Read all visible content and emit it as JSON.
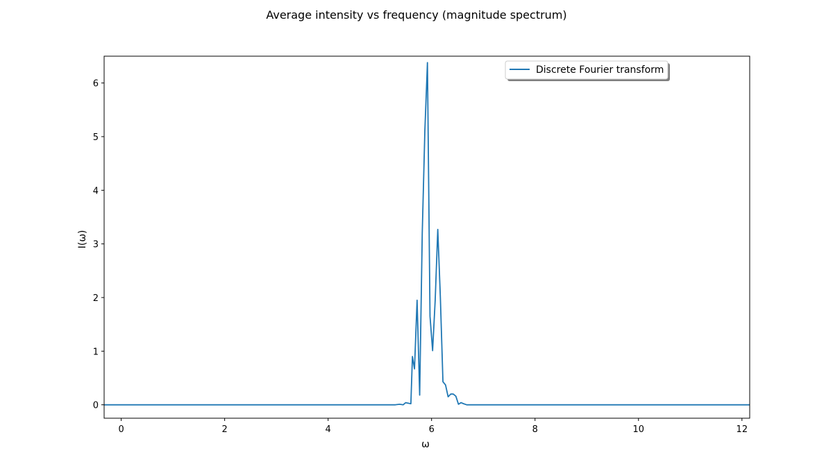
{
  "chart_data": {
    "type": "line",
    "title": "Average intensity vs frequency (magnitude spectrum)",
    "xlabel": "ω",
    "ylabel": "I(ω)",
    "xlim": [
      -0.33,
      12.15
    ],
    "ylim": [
      -0.25,
      6.5
    ],
    "xticks": [
      0,
      2,
      4,
      6,
      8,
      10,
      12
    ],
    "yticks": [
      0,
      1,
      2,
      3,
      4,
      5,
      6
    ],
    "grid": false,
    "legend_position": "top-right",
    "series": [
      {
        "name": "Discrete Fourier transform",
        "color": "#1f77b4",
        "x": [
          -0.33,
          5.3,
          5.38,
          5.45,
          5.5,
          5.55,
          5.6,
          5.63,
          5.67,
          5.72,
          5.77,
          5.82,
          5.87,
          5.92,
          5.97,
          6.02,
          6.07,
          6.12,
          6.17,
          6.22,
          6.27,
          6.32,
          6.37,
          6.42,
          6.47,
          6.52,
          6.57,
          6.62,
          6.68,
          6.75,
          7.0,
          12.15
        ],
        "y": [
          0.0,
          0.0,
          0.01,
          0.0,
          0.04,
          0.03,
          0.02,
          0.9,
          0.67,
          1.95,
          0.18,
          3.2,
          5.1,
          6.38,
          1.65,
          1.01,
          1.95,
          3.27,
          2.0,
          0.43,
          0.37,
          0.15,
          0.2,
          0.2,
          0.16,
          0.01,
          0.04,
          0.02,
          0.0,
          0.0,
          0.0,
          0.0
        ]
      }
    ]
  }
}
